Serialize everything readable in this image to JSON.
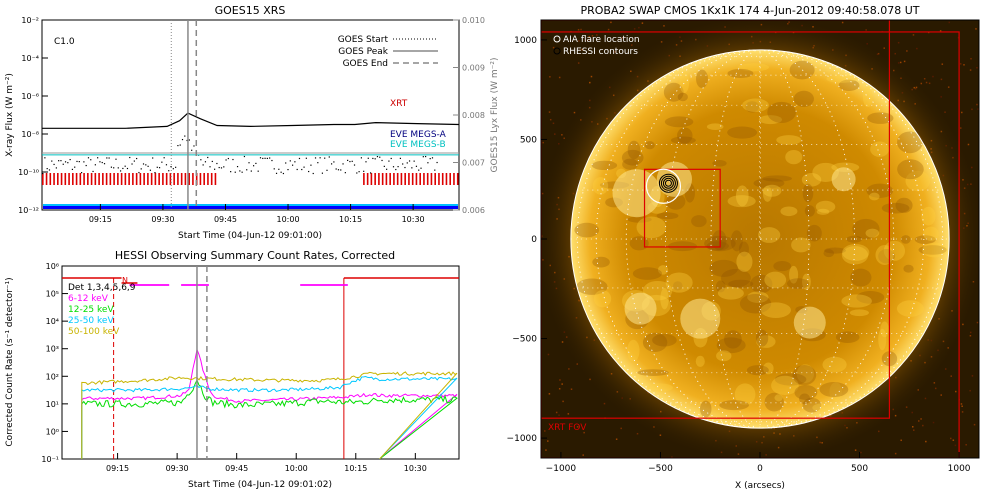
{
  "chart_data": [
    {
      "type": "line",
      "title": "GOES15 XRS",
      "xlabel": "Start Time (04-Jun-12 09:01:00)",
      "ylabel": "X-ray Flux (W m⁻²)",
      "y2label": "GOES15 Lyx Flux (W m⁻²)",
      "y_scale": "log",
      "ylim_exp": [
        -12,
        -2
      ],
      "y2lim": [
        0.006,
        0.01
      ],
      "y_ticks": [
        "10⁻¹²",
        "10⁻¹⁰",
        "10⁻⁸",
        "10⁻⁶",
        "10⁻⁴",
        "10⁻²"
      ],
      "y2_ticks": [
        "0.006",
        "0.007",
        "0.008",
        "0.009",
        "0.010"
      ],
      "x_ticks": [
        "09:15",
        "09:30",
        "09:45",
        "10:00",
        "10:15",
        "10:30"
      ],
      "xlim_min": [
        0,
        100
      ],
      "class_label": "C1.0",
      "legend": [
        "GOES Start",
        "GOES Peak",
        "GOES End"
      ],
      "markers_min": {
        "start": 31,
        "peak": 35,
        "end": 37
      },
      "labels": {
        "xrt": "XRT",
        "megs_a": "EVE MEGS-A",
        "megs_b": "EVE MEGS-B"
      },
      "colors": {
        "xrt": "#000000",
        "megs_a": "#00007f",
        "megs_b": "#00c0c0",
        "bars": "#dd0000",
        "band1": "#0000ff",
        "band2": "#00bfff"
      },
      "series": [
        {
          "name": "XRT",
          "x": [
            0,
            20,
            30,
            33,
            35,
            38,
            42,
            50,
            60,
            70,
            75,
            80,
            90,
            100
          ],
          "log_y": [
            -7.7,
            -7.7,
            -7.6,
            -7.3,
            -6.9,
            -7.2,
            -7.55,
            -7.6,
            -7.55,
            -7.5,
            -7.5,
            -7.4,
            -7.45,
            -7.5
          ]
        },
        {
          "name": "EVE MEGS-A",
          "x": [
            0,
            100
          ],
          "log_y": [
            -9.0,
            -9.0
          ]
        },
        {
          "name": "EVE MEGS-B",
          "x": [
            0,
            100
          ],
          "log_y": [
            -9.1,
            -9.1
          ]
        }
      ],
      "scatter_range": {
        "x": [
          0,
          95
        ],
        "log_y_base": -9.6
      },
      "rhessi_bars": [
        [
          0,
          42
        ],
        [
          77,
          100
        ]
      ]
    },
    {
      "type": "line",
      "title": "HESSI Observing Summary Count Rates, Corrected",
      "xlabel": "Start Time (04-Jun-12 09:01:02)",
      "ylabel": "Corrected Count Rate (s⁻¹ detector⁻¹)",
      "y_scale": "log",
      "ylim_exp": [
        -1,
        6
      ],
      "y_ticks": [
        "10⁻¹",
        "10⁰",
        "10¹",
        "10²",
        "10³",
        "10⁴",
        "10⁵",
        "10⁶"
      ],
      "x_ticks": [
        "09:15",
        "09:30",
        "09:45",
        "10:00",
        "10:15",
        "10:30"
      ],
      "xlim_min": [
        0,
        100
      ],
      "legend": [
        "Det 1,3,4,5,6,9",
        "6-12 keV",
        "12-25 keV",
        "25-50 keV",
        "50-100 keV"
      ],
      "annotation_n": "N",
      "colors": {
        "det": "#000000",
        "s1": "#ff00ff",
        "s2": "#00dd00",
        "s3": "#00c8ff",
        "s4": "#c8b400",
        "flag": "#dd0000"
      },
      "series": [
        {
          "name": "6-12 keV",
          "x": [
            0,
            5,
            20,
            30,
            32,
            33,
            34,
            35,
            36,
            37,
            38,
            40,
            45,
            55,
            65,
            72,
            78,
            80,
            100
          ],
          "log_y": [
            null,
            1.2,
            1.2,
            1.3,
            1.5,
            2.3,
            3.0,
            2.5,
            2.0,
            1.6,
            1.3,
            1.2,
            1.1,
            1.15,
            1.2,
            1.25,
            1.35,
            1.3,
            null
          ]
        },
        {
          "name": "12-25 keV",
          "x": [
            0,
            5,
            20,
            30,
            33,
            34,
            36,
            38,
            45,
            55,
            65,
            72,
            78,
            80,
            100
          ],
          "log_y": [
            null,
            1.0,
            1.0,
            1.05,
            1.6,
            1.9,
            1.3,
            1.05,
            0.95,
            1.0,
            1.1,
            1.05,
            1.1,
            1.15,
            null
          ]
        },
        {
          "name": "25-50 keV",
          "x": [
            0,
            5,
            20,
            30,
            33,
            35,
            37,
            45,
            55,
            65,
            70,
            72,
            76,
            80,
            100
          ],
          "log_y": [
            null,
            1.5,
            1.5,
            1.55,
            1.6,
            1.6,
            1.55,
            1.5,
            1.5,
            1.55,
            1.6,
            1.75,
            1.95,
            1.9,
            null
          ]
        },
        {
          "name": "50-100 keV",
          "x": [
            0,
            5,
            20,
            30,
            40,
            55,
            65,
            70,
            74,
            78,
            80,
            100
          ],
          "log_y": [
            null,
            1.75,
            1.85,
            1.95,
            1.9,
            1.85,
            1.85,
            1.9,
            2.0,
            2.1,
            2.1,
            null
          ]
        }
      ],
      "attenuator_segments": [
        [
          17,
          27
        ],
        [
          30,
          37
        ],
        [
          60,
          72
        ]
      ],
      "dashed_red_min": 13,
      "solid_red_min": 71
    },
    {
      "type": "heatmap",
      "title": "PROBA2 SWAP CMOS 1Kx1K 174   4-Jun-2012 09:40:58.078 UT",
      "xlabel": "X (arcsecs)",
      "xlim": [
        -1100,
        1100
      ],
      "ylim": [
        -1100,
        1100
      ],
      "x_ticks": [
        "−1000",
        "−500",
        "0",
        "500",
        "1000"
      ],
      "y_ticks": [
        "−1000",
        "−500",
        "0",
        "500",
        "1000"
      ],
      "legend": [
        "AIA flare location",
        "RHESSI contours"
      ],
      "fov_label": "XRT FOV",
      "solar_radius_arcsec": 950,
      "flare_xy": [
        -460,
        280
      ],
      "box_inner": [
        [
          -580,
          -40
        ],
        [
          -200,
          350
        ]
      ],
      "box_xrt": [
        [
          -1100,
          -900
        ],
        [
          650,
          1100
        ]
      ],
      "box_outer": [
        [
          -1100,
          -1100
        ],
        [
          1000,
          1040
        ]
      ]
    }
  ]
}
